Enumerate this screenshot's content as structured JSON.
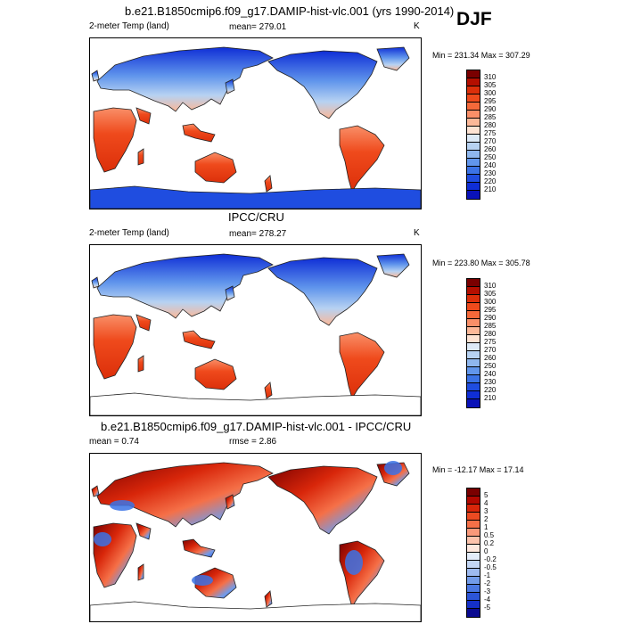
{
  "season": "DJF",
  "panels": [
    {
      "title": "b.e21.B1850cmip6.f09_g17.DAMIP-hist-vlc.001 (yrs 1990-2014)",
      "left_label": "2-meter Temp (land)",
      "center_label": "mean= 279.01",
      "right_label": "K",
      "minmax": "Min = 231.34 Max = 307.29",
      "colorbar": {
        "labels": [
          "310",
          "305",
          "300",
          "295",
          "290",
          "285",
          "280",
          "275",
          "270",
          "260",
          "250",
          "240",
          "230",
          "220",
          "210"
        ],
        "colors": [
          "#7a0000",
          "#b40f00",
          "#dc2f0a",
          "#ef4a1c",
          "#f5693a",
          "#f98f68",
          "#fcb898",
          "#fde3d3",
          "#ddeaf7",
          "#b7d2f2",
          "#8fb7ee",
          "#6196ec",
          "#3b73e6",
          "#1f4de0",
          "#0f2ed6",
          "#0a12b8"
        ]
      },
      "map_variant": "model"
    },
    {
      "title": "IPCC/CRU",
      "left_label": "2-meter Temp (land)",
      "center_label": "mean= 278.27",
      "right_label": "K",
      "minmax": "Min = 223.80 Max = 305.78",
      "colorbar": {
        "labels": [
          "310",
          "305",
          "300",
          "295",
          "290",
          "285",
          "280",
          "275",
          "270",
          "260",
          "250",
          "240",
          "230",
          "220",
          "210"
        ],
        "colors": [
          "#7a0000",
          "#b40f00",
          "#dc2f0a",
          "#ef4a1c",
          "#f5693a",
          "#f98f68",
          "#fcb898",
          "#fde3d3",
          "#ddeaf7",
          "#b7d2f2",
          "#8fb7ee",
          "#6196ec",
          "#3b73e6",
          "#1f4de0",
          "#0f2ed6",
          "#0a12b8"
        ]
      },
      "map_variant": "obs"
    },
    {
      "title": "b.e21.B1850cmip6.f09_g17.DAMIP-hist-vlc.001 - IPCC/CRU",
      "left_label": "mean =   0.74",
      "center_label": "rmse =   2.86",
      "right_label": "",
      "minmax": "Min = -12.17 Max =  17.14",
      "colorbar": {
        "labels": [
          "5",
          "4",
          "3",
          "2",
          "1",
          "0.5",
          "0.2",
          "0",
          "-0.2",
          "-0.5",
          "-1",
          "-2",
          "-3",
          "-4",
          "-5"
        ],
        "colors": [
          "#7a0000",
          "#b20800",
          "#d8260a",
          "#ec4a22",
          "#f57048",
          "#f9997a",
          "#fcc3ac",
          "#fee8de",
          "#e3ecfa",
          "#c3d6f5",
          "#9dbaf0",
          "#729be9",
          "#4b78e2",
          "#2c55d8",
          "#1530c8",
          "#0a0a90"
        ]
      },
      "map_variant": "diff"
    }
  ]
}
